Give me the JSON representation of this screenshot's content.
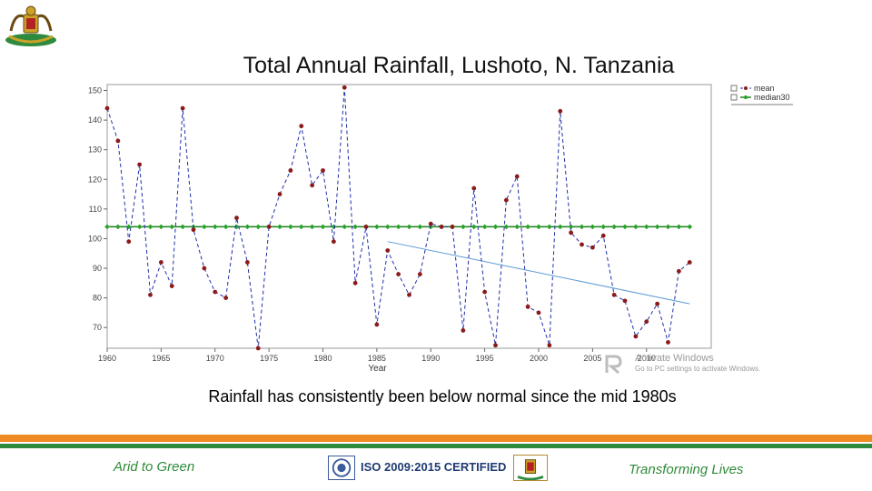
{
  "slide": {
    "title": "Total Annual Rainfall, Lushoto, N. Tanzania",
    "caption": "Rainfall has consistently been below normal since the mid 1980s"
  },
  "footer": {
    "left_text": "Arid to Green",
    "center_text": "ISO 2009:2015 CERTIFIED",
    "right_text": "Transforming Lives"
  },
  "watermark": {
    "line1": "Activate Windows",
    "line2": "Go to PC settings to activate Windows."
  },
  "colors": {
    "mean_series": "#1f2fa8",
    "mean_marker": "#8b1a1a",
    "median_line": "#1e7d1e",
    "median_marker": "#27a327",
    "trend_line": "#5b9bd5",
    "footer_orange": "#f08a24",
    "footer_green": "#2e8b3e"
  },
  "chart_data": {
    "type": "line",
    "title": "Total Annual Rainfall, Lushoto, N. Tanzania",
    "xlabel": "Year",
    "ylabel": "",
    "xlim": [
      1960,
      2016
    ],
    "ylim": [
      63,
      152
    ],
    "x_ticks": [
      1960,
      1965,
      1970,
      1975,
      1980,
      1985,
      1990,
      1995,
      2000,
      2005,
      2010
    ],
    "y_ticks": [
      70,
      80,
      90,
      100,
      110,
      120,
      130,
      140,
      150
    ],
    "grid": false,
    "legend": {
      "position": "top-right",
      "entries": [
        "mean",
        "median30"
      ]
    },
    "series": [
      {
        "name": "mean",
        "style": "dashed",
        "x": [
          1960,
          1961,
          1962,
          1963,
          1964,
          1965,
          1966,
          1967,
          1968,
          1969,
          1970,
          1971,
          1972,
          1973,
          1974,
          1975,
          1976,
          1977,
          1978,
          1979,
          1980,
          1981,
          1982,
          1983,
          1984,
          1985,
          1986,
          1987,
          1988,
          1989,
          1990,
          1991,
          1992,
          1993,
          1994,
          1995,
          1996,
          1997,
          1998,
          1999,
          2000,
          2001,
          2002,
          2003,
          2004,
          2005,
          2006,
          2007,
          2008,
          2009,
          2010,
          2011,
          2012,
          2013
        ],
        "values": [
          144,
          133,
          99,
          125,
          81,
          92,
          84,
          144,
          103,
          90,
          82,
          80,
          107,
          92,
          63,
          104,
          115,
          123,
          138,
          118,
          123,
          99,
          151,
          85,
          104,
          71,
          96,
          88,
          81,
          88,
          105,
          104,
          104,
          69,
          117,
          82,
          64,
          113,
          121,
          77,
          75,
          64,
          143,
          102,
          98,
          97,
          101,
          81,
          79,
          67,
          72,
          78,
          65,
          89
        ]
      },
      {
        "name": "median30",
        "style": "solid",
        "x": [
          1960,
          1961,
          1962,
          1963,
          1964,
          1965,
          1966,
          1967,
          1968,
          1969,
          1970,
          1971,
          1972,
          1973,
          1974,
          1975,
          1976,
          1977,
          1978,
          1979,
          1980,
          1981,
          1982,
          1983,
          1984,
          1985,
          1986,
          1987,
          1988,
          1989,
          1990,
          1991,
          1992,
          1993,
          1994,
          1995,
          1996,
          1997,
          1998,
          1999,
          2000,
          2001,
          2002,
          2003,
          2004,
          2005,
          2006,
          2007,
          2008,
          2009,
          2010,
          2011,
          2012,
          2013,
          2014
        ],
        "values": [
          104,
          104,
          104,
          104,
          104,
          104,
          104,
          104,
          104,
          104,
          104,
          104,
          104,
          104,
          104,
          104,
          104,
          104,
          104,
          104,
          104,
          104,
          104,
          104,
          104,
          104,
          104,
          104,
          104,
          104,
          104,
          104,
          104,
          104,
          104,
          104,
          104,
          104,
          104,
          104,
          104,
          104,
          104,
          104,
          104,
          104,
          104,
          104,
          104,
          104,
          104,
          104,
          104,
          104,
          104
        ]
      },
      {
        "name": "trend",
        "style": "solid",
        "x": [
          1986,
          2014
        ],
        "values": [
          99,
          78
        ]
      }
    ],
    "extra_point": {
      "x": 2014,
      "value": 92
    }
  }
}
